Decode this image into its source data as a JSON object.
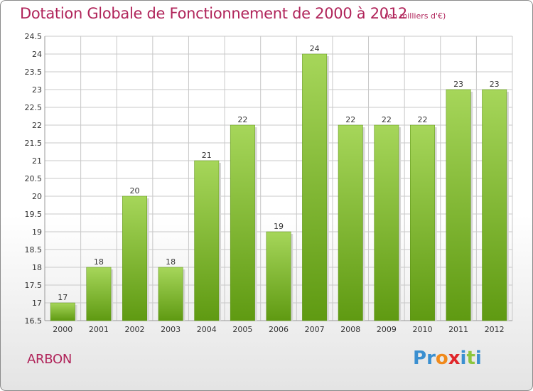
{
  "header": {
    "title": "Dotation Globale de Fonctionnement de 2000 à 2012",
    "subtitle": "(en milliers d'€)"
  },
  "footer": {
    "commune": "ARBON",
    "logo_text": "Proxiti",
    "logo_letters": [
      {
        "ch": "P",
        "color": "#3a8fd0"
      },
      {
        "ch": "r",
        "color": "#3a8fd0"
      },
      {
        "ch": "o",
        "color": "#f08a1c"
      },
      {
        "ch": "x",
        "color": "#e0262a"
      },
      {
        "ch": "i",
        "color": "#3a8fd0"
      },
      {
        "ch": "t",
        "color": "#8cc63f"
      },
      {
        "ch": "i",
        "color": "#3a8fd0"
      }
    ]
  },
  "colors": {
    "title": "#b0245a",
    "bar_light": "#a6d65a",
    "bar_dark": "#5f9a12",
    "grid": "#c8c8c8"
  },
  "chart_data": {
    "type": "bar",
    "categories": [
      "2000",
      "2001",
      "2002",
      "2003",
      "2004",
      "2005",
      "2006",
      "2007",
      "2008",
      "2009",
      "2010",
      "2011",
      "2012"
    ],
    "values": [
      17,
      18,
      20,
      18,
      21,
      22,
      19,
      24,
      22,
      22,
      22,
      23,
      23
    ],
    "data_labels": [
      "17",
      "18",
      "20",
      "18",
      "21",
      "22",
      "19",
      "24",
      "22",
      "22",
      "22",
      "23",
      "23"
    ],
    "ylim": [
      16.5,
      24.5
    ],
    "yticks": [
      "16.5",
      "17",
      "17.5",
      "18",
      "18.5",
      "19",
      "19.5",
      "20",
      "20.5",
      "21",
      "21.5",
      "22",
      "22.5",
      "23",
      "23.5",
      "24",
      "24.5"
    ],
    "grid": true,
    "xlabel": "",
    "ylabel": ""
  }
}
